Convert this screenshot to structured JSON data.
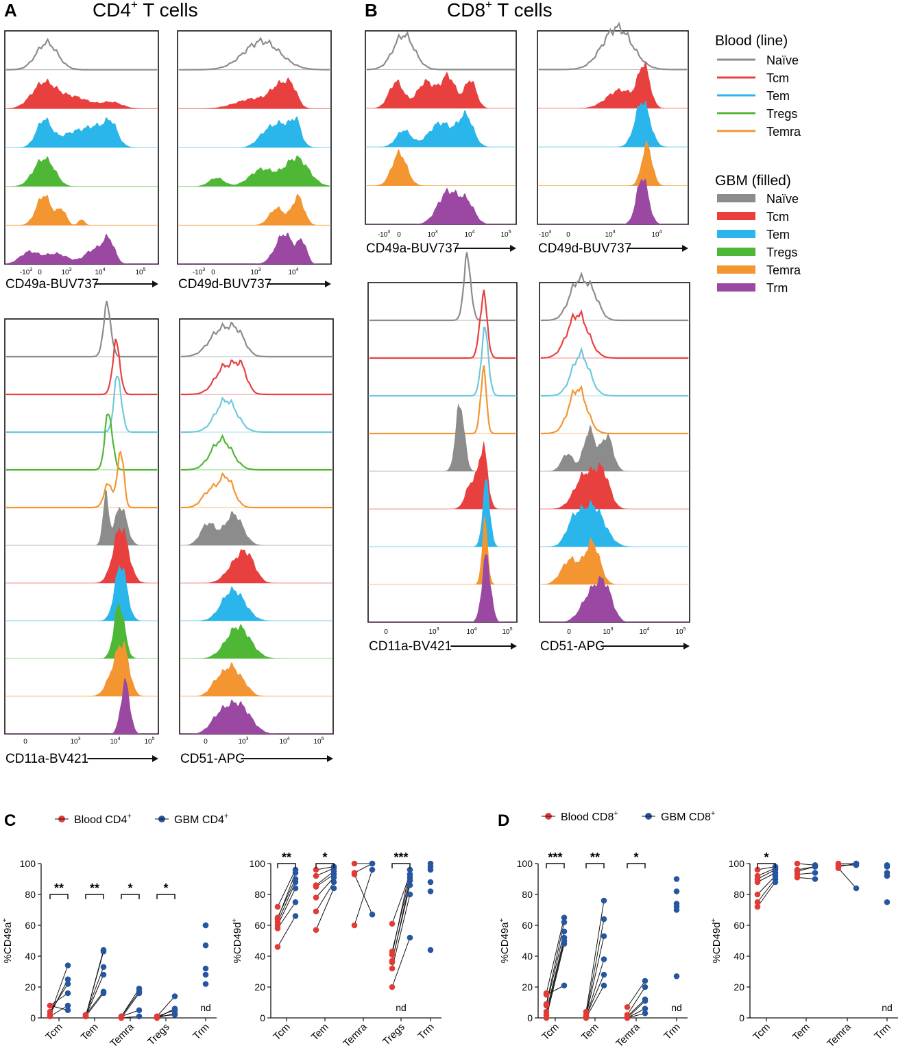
{
  "colors": {
    "Naive": "#8c8c8c",
    "Tcm": "#e8403f",
    "Tem": "#2ab6ea",
    "Tregs": "#4eb735",
    "Temra": "#f39531",
    "Trm": "#9a48a1",
    "blood": "#e13b36",
    "gbm": "#25569f",
    "blood_line_tem": "#6ec9db"
  },
  "panels": {
    "A": {
      "letter": "A",
      "title_main": "CD4",
      "title_sup": "+",
      "title_rest": " T cells"
    },
    "B": {
      "letter": "B",
      "title_main": "CD8",
      "title_sup": "+",
      "title_rest": " T cells"
    },
    "C": {
      "letter": "C",
      "legend_blood": "Blood CD4",
      "legend_gbm": "GBM CD4",
      "sup": "+"
    },
    "D": {
      "letter": "D",
      "legend_blood": "Blood CD8",
      "legend_gbm": "GBM CD8",
      "sup": "+"
    }
  },
  "legend": {
    "blood_title": "Blood (line)",
    "blood_items": [
      "Naïve",
      "Tcm",
      "Tem",
      "Tregs",
      "Temra"
    ],
    "gbm_title": "GBM (filled)",
    "gbm_items": [
      "Naïve",
      "Tcm",
      "Tem",
      "Tregs",
      "Temra",
      "Trm"
    ]
  },
  "chart_data": [
    {
      "id": "A_CD49a",
      "type": "histogram",
      "panel": "A",
      "xlabel": "CD49a-BUV737",
      "ticks": [
        "-10^3",
        "0",
        "10^3",
        "10^4",
        "10^5"
      ],
      "tracks": [
        {
          "pop": "Naive",
          "src": "blood",
          "mode": "low"
        },
        {
          "pop": "Tcm",
          "src": "gbm",
          "mode": "low"
        },
        {
          "pop": "Tem",
          "src": "gbm",
          "mode": "spread"
        },
        {
          "pop": "Tregs",
          "src": "gbm",
          "mode": "low"
        },
        {
          "pop": "Temra",
          "src": "gbm",
          "mode": "low"
        },
        {
          "pop": "Trm",
          "src": "gbm",
          "mode": "bimodal"
        }
      ]
    },
    {
      "id": "A_CD49d",
      "type": "histogram",
      "panel": "A",
      "xlabel": "CD49d-BUV737",
      "ticks": [
        "-10^3",
        "0",
        "10^3",
        "10^4"
      ],
      "tracks": [
        {
          "pop": "Naive",
          "src": "blood",
          "mode": "mid"
        },
        {
          "pop": "Tcm",
          "src": "gbm",
          "mode": "high"
        },
        {
          "pop": "Tem",
          "src": "gbm",
          "mode": "high"
        },
        {
          "pop": "Tregs",
          "src": "gbm",
          "mode": "high"
        },
        {
          "pop": "Temra",
          "src": "gbm",
          "mode": "high"
        },
        {
          "pop": "Trm",
          "src": "gbm",
          "mode": "high"
        }
      ]
    },
    {
      "id": "A_CD11a",
      "type": "histogram",
      "panel": "A",
      "xlabel": "CD11a-BV421",
      "ticks": [
        "0",
        "10^3",
        "10^4",
        "10^5"
      ],
      "tracks": [
        {
          "pop": "Naive",
          "src": "blood",
          "mode": "sharp"
        },
        {
          "pop": "Tcm",
          "src": "blood",
          "mode": "sharp"
        },
        {
          "pop": "Tem",
          "src": "blood",
          "mode": "sharp"
        },
        {
          "pop": "Tregs",
          "src": "blood",
          "mode": "sharp"
        },
        {
          "pop": "Temra",
          "src": "blood",
          "mode": "sharp"
        },
        {
          "pop": "Naive",
          "src": "gbm",
          "mode": "sharp"
        },
        {
          "pop": "Tcm",
          "src": "gbm",
          "mode": "sharp"
        },
        {
          "pop": "Tem",
          "src": "gbm",
          "mode": "sharp"
        },
        {
          "pop": "Tregs",
          "src": "gbm",
          "mode": "sharp"
        },
        {
          "pop": "Temra",
          "src": "gbm",
          "mode": "sharp"
        },
        {
          "pop": "Trm",
          "src": "gbm",
          "mode": "sharp"
        }
      ]
    },
    {
      "id": "A_CD51",
      "type": "histogram",
      "panel": "A",
      "xlabel": "CD51-APC",
      "ticks": [
        "0",
        "10^3",
        "10^4",
        "10^5"
      ],
      "tracks": [
        {
          "pop": "Naive",
          "src": "blood",
          "mode": "low"
        },
        {
          "pop": "Tcm",
          "src": "blood",
          "mode": "low"
        },
        {
          "pop": "Tem",
          "src": "blood",
          "mode": "low"
        },
        {
          "pop": "Tregs",
          "src": "blood",
          "mode": "low"
        },
        {
          "pop": "Temra",
          "src": "blood",
          "mode": "low"
        },
        {
          "pop": "Naive",
          "src": "gbm",
          "mode": "low"
        },
        {
          "pop": "Tcm",
          "src": "gbm",
          "mode": "low"
        },
        {
          "pop": "Tem",
          "src": "gbm",
          "mode": "low"
        },
        {
          "pop": "Tregs",
          "src": "gbm",
          "mode": "low"
        },
        {
          "pop": "Temra",
          "src": "gbm",
          "mode": "low"
        },
        {
          "pop": "Trm",
          "src": "gbm",
          "mode": "low"
        }
      ]
    },
    {
      "id": "B_CD49a",
      "type": "histogram",
      "panel": "B",
      "xlabel": "CD49a-BUV737",
      "ticks": [
        "-10^3",
        "0",
        "10^3",
        "10^4",
        "10^5"
      ],
      "tracks": [
        {
          "pop": "Naive",
          "src": "blood",
          "mode": "low"
        },
        {
          "pop": "Tcm",
          "src": "gbm",
          "mode": "spread"
        },
        {
          "pop": "Tem",
          "src": "gbm",
          "mode": "spread"
        },
        {
          "pop": "Temra",
          "src": "gbm",
          "mode": "low"
        },
        {
          "pop": "Trm",
          "src": "gbm",
          "mode": "high"
        }
      ]
    },
    {
      "id": "B_CD49d",
      "type": "histogram",
      "panel": "B",
      "xlabel": "CD49d-BUV737",
      "ticks": [
        "-10^3",
        "0",
        "10^3",
        "10^4"
      ],
      "tracks": [
        {
          "pop": "Naive",
          "src": "blood",
          "mode": "mid"
        },
        {
          "pop": "Tcm",
          "src": "gbm",
          "mode": "high"
        },
        {
          "pop": "Tem",
          "src": "gbm",
          "mode": "high"
        },
        {
          "pop": "Temra",
          "src": "gbm",
          "mode": "high"
        },
        {
          "pop": "Trm",
          "src": "gbm",
          "mode": "high"
        }
      ]
    },
    {
      "id": "B_CD11a",
      "type": "histogram",
      "panel": "B",
      "xlabel": "CD11a-BV421",
      "ticks": [
        "0",
        "10^3",
        "10^4",
        "10^5"
      ],
      "tracks": [
        {
          "pop": "Naive",
          "src": "blood",
          "mode": "sharp"
        },
        {
          "pop": "Tcm",
          "src": "blood",
          "mode": "sharp"
        },
        {
          "pop": "Tem",
          "src": "blood",
          "mode": "sharp"
        },
        {
          "pop": "Temra",
          "src": "blood",
          "mode": "sharp"
        },
        {
          "pop": "Naive",
          "src": "gbm",
          "mode": "sharp"
        },
        {
          "pop": "Tcm",
          "src": "gbm",
          "mode": "sharp"
        },
        {
          "pop": "Tem",
          "src": "gbm",
          "mode": "sharp"
        },
        {
          "pop": "Temra",
          "src": "gbm",
          "mode": "sharp"
        },
        {
          "pop": "Trm",
          "src": "gbm",
          "mode": "sharp"
        }
      ]
    },
    {
      "id": "B_CD51",
      "type": "histogram",
      "panel": "B",
      "xlabel": "CD51-APC",
      "ticks": [
        "0",
        "10^3",
        "10^4",
        "10^5"
      ],
      "tracks": [
        {
          "pop": "Naive",
          "src": "blood",
          "mode": "low"
        },
        {
          "pop": "Tcm",
          "src": "blood",
          "mode": "low"
        },
        {
          "pop": "Tem",
          "src": "blood",
          "mode": "low"
        },
        {
          "pop": "Temra",
          "src": "blood",
          "mode": "low"
        },
        {
          "pop": "Naive",
          "src": "gbm",
          "mode": "low"
        },
        {
          "pop": "Tcm",
          "src": "gbm",
          "mode": "low"
        },
        {
          "pop": "Tem",
          "src": "gbm",
          "mode": "low"
        },
        {
          "pop": "Temra",
          "src": "gbm",
          "mode": "low"
        },
        {
          "pop": "Trm",
          "src": "gbm",
          "mode": "low"
        }
      ]
    },
    {
      "id": "C_CD49a",
      "type": "scatter",
      "panel": "C",
      "ylabel": "%CD49a",
      "ylabel_sup": "+",
      "ylim": [
        0,
        100
      ],
      "yticks": [
        0,
        20,
        40,
        60,
        80,
        100
      ],
      "categories": [
        "Tcm",
        "Tem",
        "Temra",
        "Tregs",
        "Trm"
      ],
      "paired": [
        [
          [
            8,
            5
          ],
          [
            4,
            22
          ],
          [
            2,
            25
          ],
          [
            2,
            34
          ],
          [
            8,
            16
          ],
          [
            1,
            8
          ]
        ],
        [
          [
            1,
            44
          ],
          [
            1,
            43
          ],
          [
            2,
            33
          ],
          [
            1,
            28
          ],
          [
            2,
            17
          ],
          [
            1,
            16
          ]
        ],
        [
          [
            1,
            19
          ],
          [
            1,
            17
          ],
          [
            0,
            16
          ],
          [
            1,
            5
          ],
          [
            0,
            1
          ]
        ],
        [
          [
            1,
            14
          ],
          [
            0,
            6
          ],
          [
            1,
            5
          ],
          [
            0,
            3
          ],
          [
            1,
            2
          ]
        ],
        []
      ],
      "gbm_only": [
        [],
        [],
        [],
        [],
        [
          60,
          60,
          47,
          32,
          28,
          22
        ]
      ],
      "sig": [
        {
          "cat": 0,
          "label": "**"
        },
        {
          "cat": 1,
          "label": "**"
        },
        {
          "cat": 2,
          "label": "*"
        },
        {
          "cat": 3,
          "label": "*"
        }
      ],
      "nd": [
        4
      ]
    },
    {
      "id": "C_CD49d",
      "type": "scatter",
      "panel": "C",
      "ylabel": "%CD49d",
      "ylabel_sup": "+",
      "ylim": [
        0,
        100
      ],
      "yticks": [
        0,
        20,
        40,
        60,
        80,
        100
      ],
      "categories": [
        "Tcm",
        "Tem",
        "Temra",
        "Tregs",
        "Trm"
      ],
      "paired": [
        [
          [
            72,
            96
          ],
          [
            64,
            94
          ],
          [
            62,
            88
          ],
          [
            60,
            84
          ],
          [
            58,
            75
          ],
          [
            46,
            66
          ],
          [
            65,
            90
          ]
        ],
        [
          [
            96,
            98
          ],
          [
            92,
            97
          ],
          [
            86,
            95
          ],
          [
            78,
            91
          ],
          [
            69,
            88
          ],
          [
            57,
            84
          ],
          [
            85,
            93
          ]
        ],
        [
          [
            100,
            100
          ],
          [
            94,
            100
          ],
          [
            93,
            67
          ],
          [
            60,
            96
          ]
        ],
        [
          [
            61,
            93
          ],
          [
            43,
            91
          ],
          [
            41,
            96
          ],
          [
            37,
            86
          ],
          [
            32,
            80
          ],
          [
            20,
            52
          ],
          [
            36,
            89
          ]
        ],
        []
      ],
      "gbm_only": [
        [],
        [],
        [],
        [],
        [
          100,
          98,
          96,
          88,
          82,
          44
        ]
      ],
      "sig": [
        {
          "cat": 0,
          "label": "**"
        },
        {
          "cat": 1,
          "label": "*"
        },
        {
          "cat": 3,
          "label": "***"
        }
      ],
      "nd": [
        3
      ]
    },
    {
      "id": "D_CD49a",
      "type": "scatter",
      "panel": "D",
      "ylabel": "%CD49a",
      "ylabel_sup": "+",
      "ylim": [
        0,
        100
      ],
      "yticks": [
        0,
        20,
        40,
        60,
        80,
        100
      ],
      "categories": [
        "Tcm",
        "Tem",
        "Temra",
        "Trm"
      ],
      "paired": [
        [
          [
            16,
            65
          ],
          [
            9,
            62
          ],
          [
            8,
            56
          ],
          [
            4,
            52
          ],
          [
            2,
            50
          ],
          [
            0,
            48
          ],
          [
            15,
            21
          ]
        ],
        [
          [
            4,
            76
          ],
          [
            2,
            64
          ],
          [
            1,
            53
          ],
          [
            0,
            38
          ],
          [
            1,
            28
          ],
          [
            0,
            21
          ]
        ],
        [
          [
            7,
            24
          ],
          [
            2,
            20
          ],
          [
            1,
            12
          ],
          [
            0,
            11
          ],
          [
            0,
            6
          ],
          [
            0,
            3
          ]
        ],
        []
      ],
      "gbm_only": [
        [],
        [],
        [],
        [
          90,
          82,
          74,
          72,
          70,
          27
        ]
      ],
      "sig": [
        {
          "cat": 0,
          "label": "***"
        },
        {
          "cat": 1,
          "label": "**"
        },
        {
          "cat": 2,
          "label": "*"
        }
      ],
      "nd": [
        3
      ]
    },
    {
      "id": "D_CD49d",
      "type": "scatter",
      "panel": "D",
      "ylabel": "%CD49d",
      "ylabel_sup": "+",
      "ylim": [
        0,
        100
      ],
      "yticks": [
        0,
        20,
        40,
        60,
        80,
        100
      ],
      "categories": [
        "Tcm",
        "Tem",
        "Temra",
        "Trm"
      ],
      "paired": [
        [
          [
            96,
            98
          ],
          [
            92,
            97
          ],
          [
            90,
            96
          ],
          [
            88,
            94
          ],
          [
            80,
            92
          ],
          [
            75,
            90
          ],
          [
            72,
            88
          ]
        ],
        [
          [
            100,
            99
          ],
          [
            96,
            98
          ],
          [
            95,
            98
          ],
          [
            93,
            94
          ],
          [
            91,
            90
          ]
        ],
        [
          [
            100,
            100
          ],
          [
            99,
            99
          ],
          [
            98,
            100
          ],
          [
            97,
            84
          ]
        ],
        []
      ],
      "gbm_only": [
        [],
        [],
        [],
        [
          99,
          98,
          94,
          92,
          75
        ]
      ],
      "sig": [
        {
          "cat": 0,
          "label": "*"
        }
      ],
      "nd": [
        3
      ]
    }
  ]
}
